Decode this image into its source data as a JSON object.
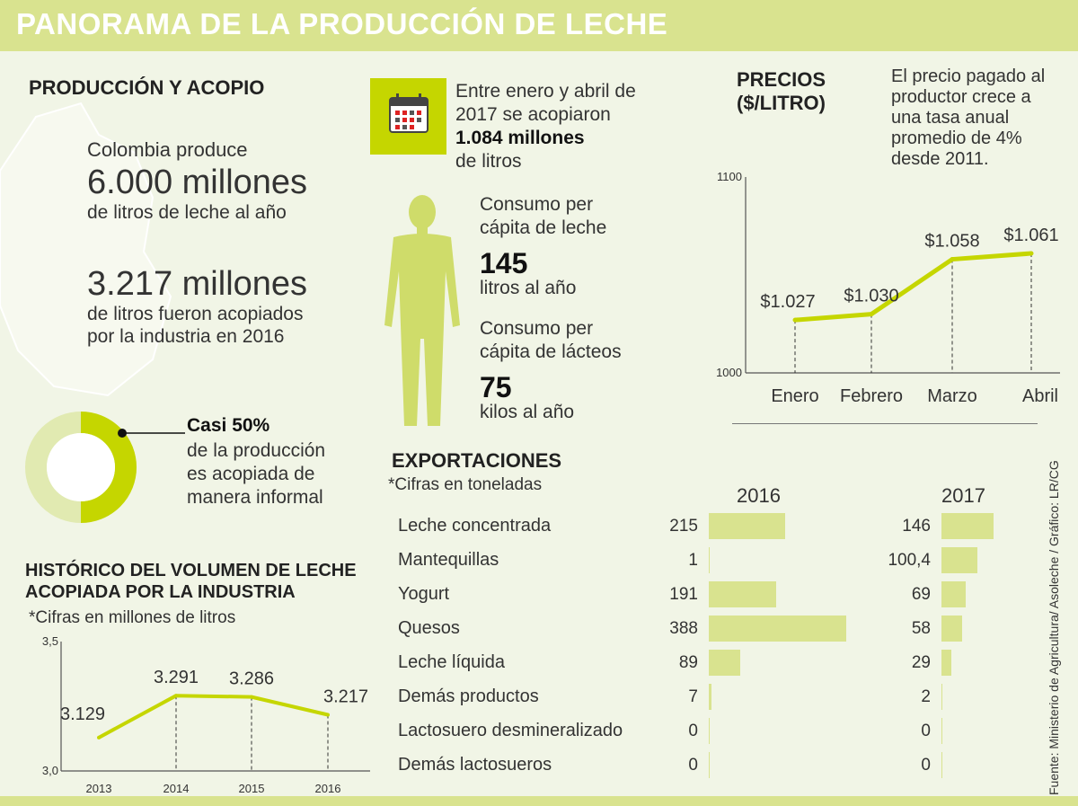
{
  "header": {
    "title": "PANORAMA DE LA PRODUCCIÓN DE LECHE"
  },
  "produccion": {
    "title": "PRODUCCIÓN Y ACOPIO",
    "line1": "Colombia produce",
    "big1": "6.000 millones",
    "line2": "de litros de leche al año",
    "big2": "3.217 millones",
    "line3": "de litros fueron acopiados",
    "line4": "por la industria en 2016"
  },
  "acopio": {
    "line1": "Entre enero y abril de",
    "line2": "2017 se acopiaron",
    "line3": "1.084 millones",
    "line4": "de litros"
  },
  "consumo": {
    "leche_l1": "Consumo per",
    "leche_l2": "cápita de leche",
    "leche_num": "145",
    "leche_unit": "litros al año",
    "lacteos_l1": "Consumo per",
    "lacteos_l2": "cápita de lácteos",
    "lacteos_num": "75",
    "lacteos_unit": "kilos al año"
  },
  "informal": {
    "bold": "Casi 50%",
    "l1": "de la producción",
    "l2": "es acopiada de",
    "l3": "manera informal",
    "fraction": 0.5,
    "color_filled": "#c5d600",
    "color_rest": "#e1eab1"
  },
  "precios": {
    "title_l1": "PRECIOS",
    "title_l2": "($/LITRO)",
    "note_l1": "El precio pagado al",
    "note_l2": "productor crece a",
    "note_l3": "una tasa anual",
    "note_l4": "promedio de 4%",
    "note_l5": "desde 2011."
  },
  "historico": {
    "title_l1": "HISTÓRICO DEL VOLUMEN DE LECHE",
    "title_l2": "ACOPIADA POR LA INDUSTRIA",
    "note": "*Cifras en millones de litros"
  },
  "exportaciones": {
    "title": "EXPORTACIONES",
    "note": "*Cifras en toneladas",
    "year1": "2016",
    "year2": "2017"
  },
  "source": "Fuente: Ministerio de Agricultura/ Asoleche / Gráfico: LR/CG",
  "colors": {
    "accent": "#c5d600",
    "light_bar": "#d9e38f",
    "background": "#f1f5e6"
  },
  "chart_data": [
    {
      "type": "line",
      "categories": [
        "Enero",
        "Febrero",
        "Marzo",
        "Abril"
      ],
      "values": [
        1027,
        1030,
        1058,
        1061
      ],
      "data_labels": [
        "$1.027",
        "$1.030",
        "$1.058",
        "$1.061"
      ],
      "ylim": [
        1000,
        1100
      ],
      "yticks": [
        "1000",
        "1100"
      ]
    },
    {
      "type": "line",
      "categories": [
        "2013",
        "2014",
        "2015",
        "2016"
      ],
      "values": [
        3.129,
        3.291,
        3.286,
        3.217
      ],
      "data_labels": [
        "3.129",
        "3.291",
        "3.286",
        "3.217"
      ],
      "ylim": [
        3.0,
        3.5
      ],
      "yticks": [
        "3,0",
        "3,5"
      ]
    },
    {
      "type": "bar",
      "categories": [
        "Leche concentrada",
        "Mantequillas",
        "Yogurt",
        "Quesos",
        "Leche líquida",
        "Demás productos",
        "Lactosuero desmineralizado",
        "Demás lactosueros"
      ],
      "series": [
        {
          "name": "2016",
          "values": [
            215,
            1,
            191,
            388,
            89,
            7,
            0,
            0
          ],
          "labels": [
            "215",
            "1",
            "191",
            "388",
            "89",
            "7",
            "0",
            "0"
          ]
        },
        {
          "name": "2017",
          "values": [
            146,
            100.4,
            69,
            58,
            29,
            2,
            0,
            0
          ],
          "labels": [
            "146",
            "100,4",
            "69",
            "58",
            "29",
            "2",
            "0",
            "0"
          ]
        }
      ]
    },
    {
      "type": "pie",
      "values": [
        50,
        50
      ]
    }
  ]
}
